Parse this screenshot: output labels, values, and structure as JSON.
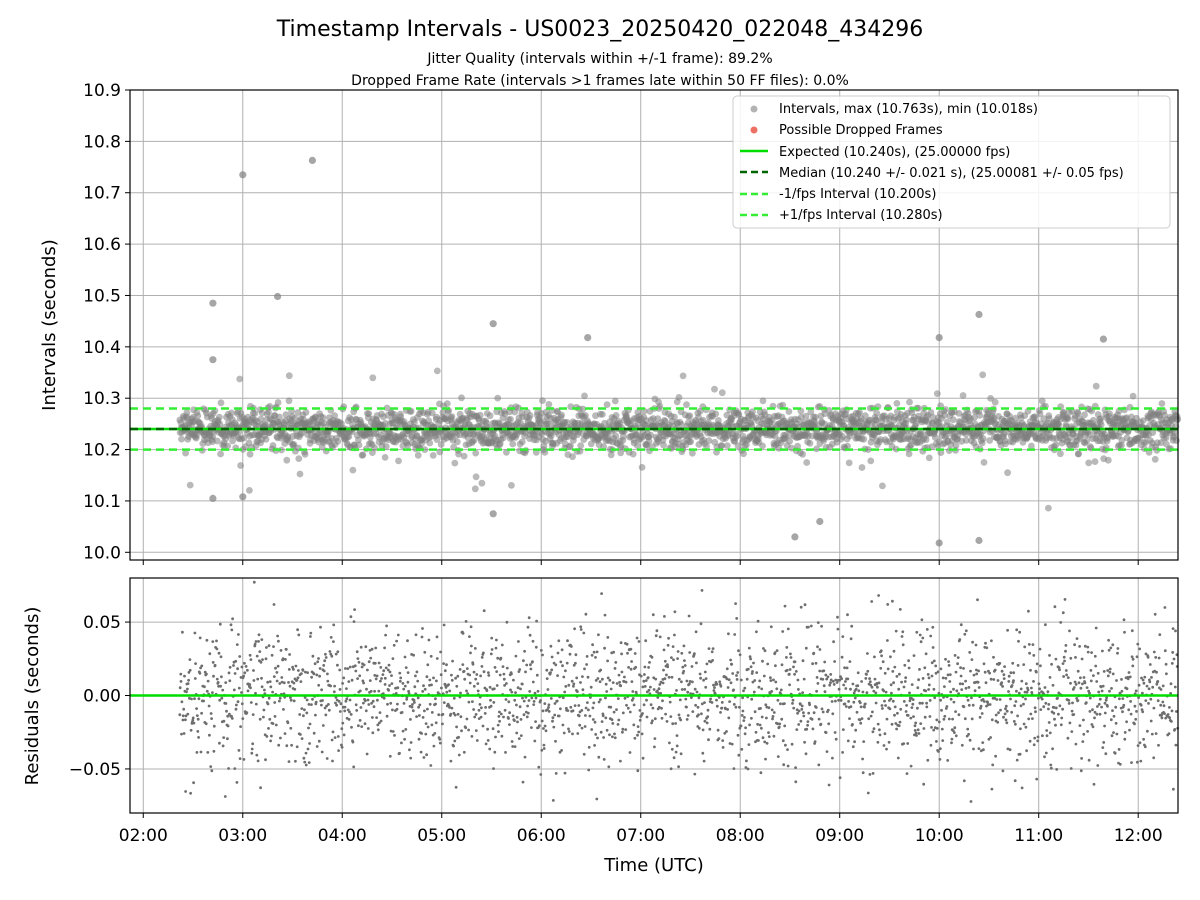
{
  "chart_data": {
    "type": "scatter",
    "title": "Timestamp Intervals - US0023_20250420_022048_434296",
    "subtitle_lines": [
      "Jitter Quality (intervals within +/-1 frame): 89.2%",
      "Dropped Frame Rate (intervals >1 frames late within 50 FF files): 0.0%"
    ],
    "xlabel": "Time (UTC)",
    "x_time_range": [
      "01:52",
      "12:24"
    ],
    "x_ticks": [
      "02:00",
      "03:00",
      "04:00",
      "05:00",
      "06:00",
      "07:00",
      "08:00",
      "09:00",
      "10:00",
      "11:00",
      "12:00"
    ],
    "grid": true,
    "legend_position": "top-right",
    "colors": {
      "intervals": "#808080",
      "dropped": "#e74c3c",
      "expected": "#00dd00",
      "median": "#006400",
      "minus_interval": "#33ee33",
      "plus_interval": "#33ee33"
    },
    "top_panel": {
      "ylabel": "Intervals (seconds)",
      "ylim": [
        9.985,
        10.9
      ],
      "y_ticks": [
        "10.0",
        "10.1",
        "10.2",
        "10.3",
        "10.4",
        "10.5",
        "10.6",
        "10.7",
        "10.8",
        "10.9"
      ],
      "expected": 10.24,
      "median": 10.24,
      "minus_fps_interval": 10.2,
      "plus_fps_interval": 10.28,
      "legend": [
        "Intervals, max (10.763s), min (10.018s)",
        "Possible Dropped Frames",
        "Expected (10.240s), (25.00000 fps)",
        "Median (10.240 +/- 0.021 s), (25.00081 +/- 0.05 fps)",
        "-1/fps Interval (10.200s)",
        "+1/fps Interval (10.280s)"
      ],
      "notable_points": [
        {
          "time": "02:42",
          "value": 10.485
        },
        {
          "time": "02:42",
          "value": 10.375
        },
        {
          "time": "02:42",
          "value": 10.105
        },
        {
          "time": "03:00",
          "value": 10.735
        },
        {
          "time": "03:00",
          "value": 10.108
        },
        {
          "time": "03:21",
          "value": 10.498
        },
        {
          "time": "03:42",
          "value": 10.763
        },
        {
          "time": "05:31",
          "value": 10.445
        },
        {
          "time": "05:31",
          "value": 10.075
        },
        {
          "time": "06:28",
          "value": 10.418
        },
        {
          "time": "08:33",
          "value": 10.03
        },
        {
          "time": "08:48",
          "value": 10.06
        },
        {
          "time": "10:00",
          "value": 10.418
        },
        {
          "time": "10:00",
          "value": 10.018
        },
        {
          "time": "10:24",
          "value": 10.463
        },
        {
          "time": "10:24",
          "value": 10.023
        },
        {
          "time": "11:39",
          "value": 10.415
        }
      ]
    },
    "bottom_panel": {
      "ylabel": "Residuals (seconds)",
      "ylim": [
        -0.08,
        0.08
      ],
      "y_ticks": [
        "0.05",
        "0.00",
        "−0.05"
      ],
      "zero_line": 0
    }
  }
}
